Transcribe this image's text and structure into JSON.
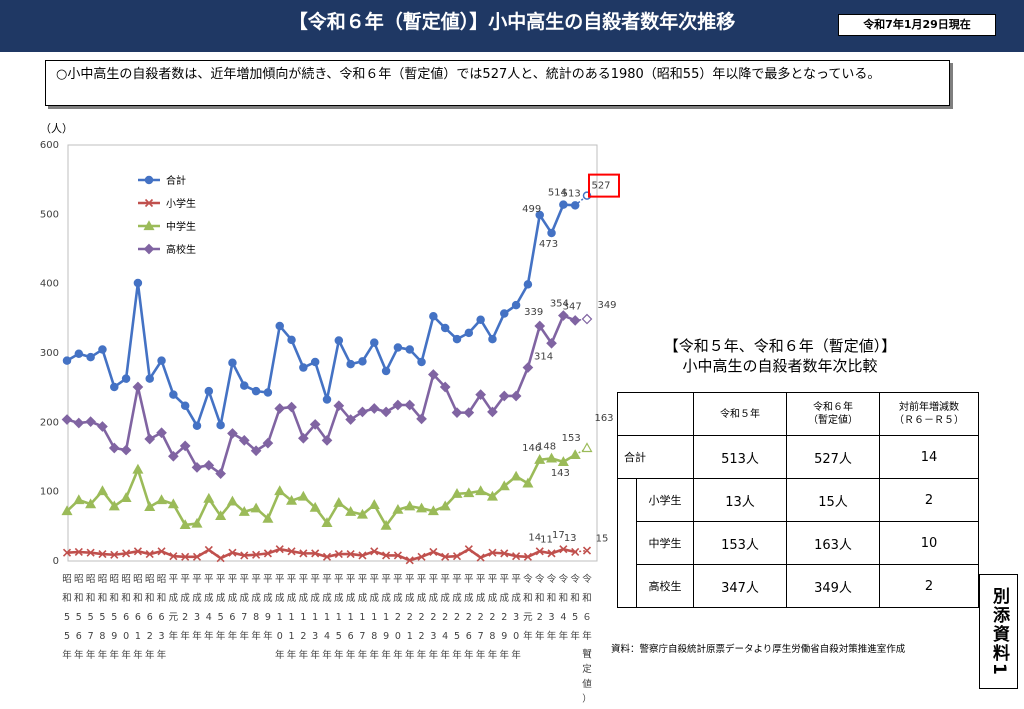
{
  "header": {
    "title": "【令和６年（暫定値）】小中高生の自殺者数年次推移",
    "date": "令和7年1月29日現在"
  },
  "summary": {
    "text": "○小中高生の自殺者数は、近年増加傾向が続き、令和６年（暫定値）では527人と、統計のある1980（昭和55）年以降で最多となっている。"
  },
  "colors": {
    "total": "#4472c4",
    "elementary": "#c0504d",
    "junior": "#9bbb59",
    "high": "#8064a2",
    "header_bg": "#1f3864",
    "highlight": "#ff0000"
  },
  "chart_data": {
    "type": "line",
    "ylabel": "（人）",
    "ylim": [
      0,
      600
    ],
    "yticks": [
      0,
      100,
      200,
      300,
      400,
      500,
      600
    ],
    "grid": false,
    "legend_position": "top-left",
    "categories": [
      "昭和55年",
      "昭和56年",
      "昭和57年",
      "昭和58年",
      "昭和59年",
      "昭和60年",
      "昭和61年",
      "昭和62年",
      "昭和63年",
      "平成元年",
      "平成2年",
      "平成3年",
      "平成4年",
      "平成5年",
      "平成6年",
      "平成7年",
      "平成8年",
      "平成9年",
      "平成10年",
      "平成11年",
      "平成12年",
      "平成13年",
      "平成14年",
      "平成15年",
      "平成16年",
      "平成17年",
      "平成18年",
      "平成19年",
      "平成20年",
      "平成21年",
      "平成22年",
      "平成23年",
      "平成24年",
      "平成25年",
      "平成26年",
      "平成27年",
      "平成28年",
      "平成29年",
      "平成30年",
      "令和元年",
      "令和2年",
      "令和3年",
      "令和4年",
      "令和5年",
      "令和6年（暫定値）"
    ],
    "x_label_rows": [
      [
        "昭",
        "昭",
        "昭",
        "昭",
        "昭",
        "昭",
        "昭",
        "昭",
        "昭",
        "平",
        "平",
        "平",
        "平",
        "平",
        "平",
        "平",
        "平",
        "平",
        "平",
        "平",
        "平",
        "平",
        "平",
        "平",
        "平",
        "平",
        "平",
        "平",
        "平",
        "平",
        "平",
        "平",
        "平",
        "平",
        "平",
        "平",
        "平",
        "平",
        "平",
        "令",
        "令",
        "令",
        "令",
        "令",
        "令"
      ],
      [
        "和",
        "和",
        "和",
        "和",
        "和",
        "和",
        "和",
        "和",
        "和",
        "成",
        "成",
        "成",
        "成",
        "成",
        "成",
        "成",
        "成",
        "成",
        "成",
        "成",
        "成",
        "成",
        "成",
        "成",
        "成",
        "成",
        "成",
        "成",
        "成",
        "成",
        "成",
        "成",
        "成",
        "成",
        "成",
        "成",
        "成",
        "成",
        "成",
        "和",
        "和",
        "和",
        "和",
        "和",
        "和"
      ],
      [
        "5",
        "5",
        "5",
        "5",
        "5",
        "6",
        "6",
        "6",
        "6",
        "元",
        "2",
        "3",
        "4",
        "5",
        "6",
        "7",
        "8",
        "9",
        "1",
        "1",
        "1",
        "1",
        "1",
        "1",
        "1",
        "1",
        "1",
        "1",
        "2",
        "2",
        "2",
        "2",
        "2",
        "2",
        "2",
        "2",
        "2",
        "2",
        "3",
        "元",
        "2",
        "3",
        "4",
        "5",
        "６"
      ],
      [
        "5",
        "6",
        "7",
        "8",
        "9",
        "0",
        "1",
        "2",
        "3",
        "年",
        "年",
        "年",
        "年",
        "年",
        "年",
        "年",
        "年",
        "年",
        "0",
        "1",
        "2",
        "3",
        "4",
        "5",
        "6",
        "7",
        "8",
        "9",
        "0",
        "1",
        "2",
        "3",
        "4",
        "5",
        "6",
        "7",
        "8",
        "9",
        "0",
        "年",
        "年",
        "年",
        "年",
        "年",
        "年"
      ],
      [
        "年",
        "年",
        "年",
        "年",
        "年",
        "年",
        "年",
        "年",
        "年",
        "",
        "",
        "",
        "",
        "",
        "",
        "",
        "",
        "",
        "年",
        "年",
        "年",
        "年",
        "年",
        "年",
        "年",
        "年",
        "年",
        "年",
        "年",
        "年",
        "年",
        "年",
        "年",
        "年",
        "年",
        "年",
        "年",
        "年",
        "年",
        "",
        "",
        "",
        "",
        "",
        "（"
      ]
    ],
    "last_label_tail": [
      "暫",
      "定",
      "値",
      "）"
    ],
    "series": [
      {
        "name": "合計",
        "marker": "circle",
        "values": [
          289,
          299,
          294,
          305,
          251,
          263,
          401,
          263,
          289,
          240,
          224,
          195,
          245,
          196,
          286,
          253,
          245,
          243,
          339,
          319,
          279,
          287,
          233,
          318,
          284,
          288,
          315,
          274,
          308,
          305,
          287,
          353,
          336,
          320,
          329,
          348,
          320,
          357,
          369,
          399,
          499,
          473,
          514,
          513,
          527
        ],
        "labels": [
          {
            "i": 40,
            "text": "499"
          },
          {
            "i": 41,
            "text": "473"
          },
          {
            "i": 42,
            "text": "514"
          },
          {
            "i": 43,
            "text": "513"
          },
          {
            "i": 44,
            "text": "527"
          }
        ]
      },
      {
        "name": "小学生",
        "marker": "cross",
        "values": [
          12,
          13,
          12,
          10,
          9,
          11,
          14,
          10,
          14,
          7,
          6,
          6,
          16,
          4,
          12,
          8,
          9,
          11,
          17,
          14,
          11,
          11,
          6,
          10,
          10,
          8,
          14,
          8,
          8,
          1,
          6,
          13,
          6,
          7,
          17,
          5,
          12,
          11,
          7,
          6,
          14,
          11,
          17,
          13,
          15
        ],
        "labels": [
          {
            "i": 40,
            "text": "14"
          },
          {
            "i": 41,
            "text": "11"
          },
          {
            "i": 42,
            "text": "17"
          },
          {
            "i": 43,
            "text": "13"
          },
          {
            "i": 44,
            "text": "15"
          }
        ]
      },
      {
        "name": "中学生",
        "marker": "triangle",
        "values": [
          72,
          88,
          82,
          101,
          79,
          91,
          132,
          78,
          88,
          82,
          52,
          54,
          90,
          65,
          86,
          71,
          76,
          61,
          101,
          87,
          93,
          77,
          55,
          84,
          71,
          67,
          81,
          51,
          74,
          79,
          76,
          72,
          79,
          97,
          98,
          101,
          93,
          108,
          122,
          112,
          146,
          148,
          143,
          153,
          163
        ],
        "labels": [
          {
            "i": 40,
            "text": "146"
          },
          {
            "i": 41,
            "text": "148"
          },
          {
            "i": 42,
            "text": "143"
          },
          {
            "i": 43,
            "text": "153"
          },
          {
            "i": 44,
            "text": "163"
          }
        ]
      },
      {
        "name": "高校生",
        "marker": "diamond",
        "values": [
          204,
          199,
          201,
          194,
          163,
          160,
          251,
          176,
          185,
          151,
          166,
          135,
          138,
          126,
          184,
          174,
          159,
          170,
          220,
          222,
          177,
          197,
          174,
          224,
          204,
          215,
          220,
          215,
          225,
          225,
          205,
          269,
          251,
          214,
          214,
          240,
          215,
          238,
          238,
          279,
          339,
          314,
          354,
          347,
          349
        ],
        "labels": [
          {
            "i": 40,
            "text": "339"
          },
          {
            "i": 41,
            "text": "314"
          },
          {
            "i": 42,
            "text": "354"
          },
          {
            "i": 43,
            "text": "347"
          },
          {
            "i": 44,
            "text": "349"
          }
        ]
      }
    ]
  },
  "comparison": {
    "title_line1": "【令和５年、令和６年（暫定値）】",
    "title_line2": "小中高生の自殺者数年次比較",
    "headers": {
      "col_r5": "令和５年",
      "col_r6_line1": "令和６年",
      "col_r6_line2": "（暫定値）",
      "col_diff_line1": "対前年増減数",
      "col_diff_line2": "（Ｒ６－Ｒ５）"
    },
    "rows": [
      {
        "label": "合計",
        "r5": "513人",
        "r6": "527人",
        "diff": "14"
      },
      {
        "label": "小学生",
        "r5": "13人",
        "r6": "15人",
        "diff": "2"
      },
      {
        "label": "中学生",
        "r5": "153人",
        "r6": "163人",
        "diff": "10"
      },
      {
        "label": "高校生",
        "r5": "347人",
        "r6": "349人",
        "diff": "2"
      }
    ]
  },
  "source": "資料：警察庁自殺統計原票データより厚生労働省自殺対策推進室作成",
  "side_badge": "別添資料1"
}
